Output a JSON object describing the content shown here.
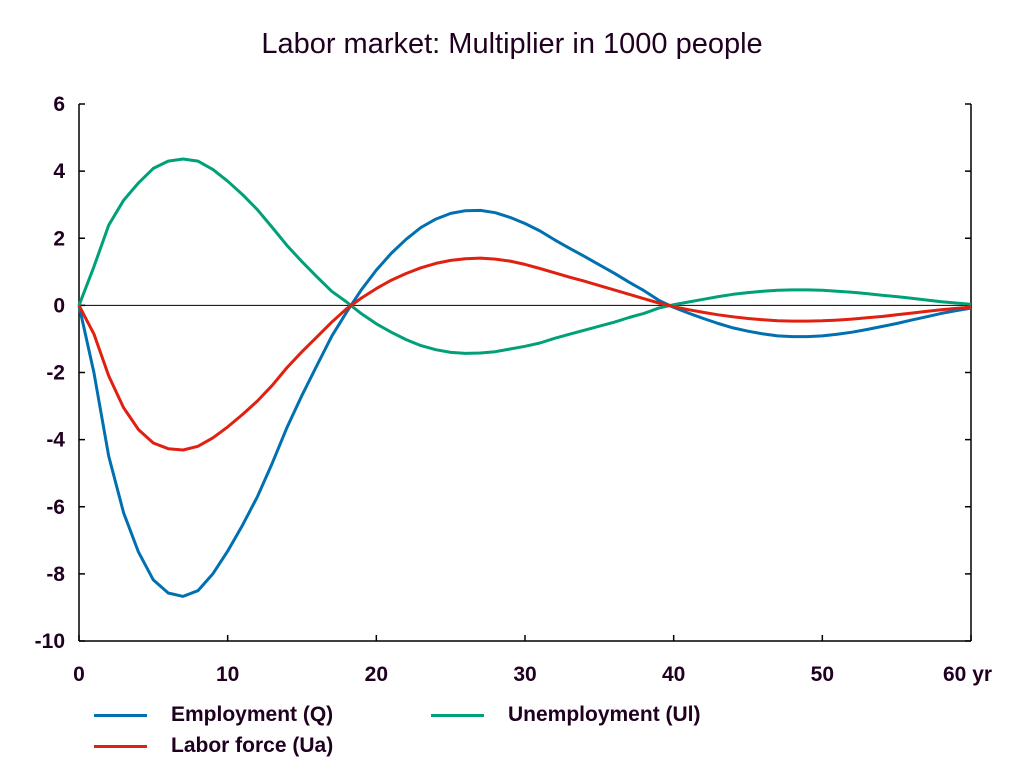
{
  "chart_data": {
    "type": "line",
    "title": "Labor market: Multiplier in 1000 people",
    "xlabel": "yr",
    "ylabel": "",
    "xlim": [
      0,
      60
    ],
    "ylim": [
      -10,
      6
    ],
    "x_ticks": [
      0,
      10,
      20,
      30,
      40,
      50,
      60
    ],
    "x_tick_labels": [
      "0",
      "10",
      "20",
      "30",
      "40",
      "50",
      "60 yr"
    ],
    "y_ticks": [
      6,
      4,
      2,
      0,
      -2,
      -4,
      -6,
      -8,
      -10
    ],
    "y_tick_labels": [
      "6",
      "4",
      "2",
      "0",
      "-2",
      "-4",
      "-6",
      "-8",
      "-10"
    ],
    "grid": false,
    "zero_line": true,
    "legend_position": "bottom",
    "x": [
      0,
      1,
      2,
      3,
      4,
      5,
      6,
      7,
      8,
      9,
      10,
      11,
      12,
      13,
      14,
      15,
      16,
      17,
      18,
      19,
      20,
      21,
      22,
      23,
      24,
      25,
      26,
      27,
      28,
      29,
      30,
      31,
      32,
      33,
      34,
      35,
      36,
      37,
      38,
      39,
      40,
      41,
      42,
      43,
      44,
      45,
      46,
      47,
      48,
      49,
      50,
      51,
      52,
      53,
      54,
      55,
      56,
      57,
      58,
      59,
      60
    ],
    "series": [
      {
        "name": "Employment (Q)",
        "color": "#0070b0",
        "values": [
          0,
          -2.0,
          -4.49,
          -6.18,
          -7.35,
          -8.18,
          -8.57,
          -8.67,
          -8.5,
          -8.0,
          -7.32,
          -6.55,
          -5.7,
          -4.7,
          -3.63,
          -2.68,
          -1.79,
          -0.92,
          -0.2,
          0.47,
          1.05,
          1.55,
          1.97,
          2.32,
          2.57,
          2.74,
          2.82,
          2.83,
          2.76,
          2.62,
          2.44,
          2.22,
          1.95,
          1.7,
          1.46,
          1.21,
          0.96,
          0.69,
          0.44,
          0.15,
          -0.06,
          -0.23,
          -0.39,
          -0.54,
          -0.67,
          -0.77,
          -0.85,
          -0.91,
          -0.93,
          -0.93,
          -0.91,
          -0.86,
          -0.8,
          -0.72,
          -0.63,
          -0.54,
          -0.44,
          -0.34,
          -0.24,
          -0.16,
          -0.08
        ]
      },
      {
        "name": "Unemployment (Ul)",
        "color": "#00a078",
        "values": [
          0,
          1.15,
          2.39,
          3.13,
          3.65,
          4.08,
          4.3,
          4.36,
          4.3,
          4.05,
          3.7,
          3.3,
          2.85,
          2.32,
          1.78,
          1.3,
          0.85,
          0.42,
          0.1,
          -0.25,
          -0.55,
          -0.8,
          -1.02,
          -1.2,
          -1.32,
          -1.4,
          -1.43,
          -1.42,
          -1.38,
          -1.3,
          -1.22,
          -1.12,
          -0.98,
          -0.86,
          -0.74,
          -0.62,
          -0.5,
          -0.36,
          -0.24,
          -0.08,
          0.02,
          0.1,
          0.18,
          0.26,
          0.33,
          0.38,
          0.42,
          0.45,
          0.46,
          0.46,
          0.45,
          0.42,
          0.39,
          0.35,
          0.3,
          0.26,
          0.21,
          0.16,
          0.11,
          0.07,
          0.03
        ]
      },
      {
        "name": "Labor force (Ua)",
        "color": "#e02010",
        "values": [
          0,
          -0.85,
          -2.1,
          -3.05,
          -3.7,
          -4.1,
          -4.27,
          -4.31,
          -4.2,
          -3.95,
          -3.62,
          -3.25,
          -2.85,
          -2.38,
          -1.85,
          -1.38,
          -0.94,
          -0.5,
          -0.1,
          0.22,
          0.5,
          0.75,
          0.95,
          1.12,
          1.25,
          1.34,
          1.39,
          1.41,
          1.38,
          1.32,
          1.22,
          1.1,
          0.97,
          0.84,
          0.72,
          0.59,
          0.46,
          0.33,
          0.2,
          0.07,
          -0.04,
          -0.13,
          -0.21,
          -0.28,
          -0.34,
          -0.39,
          -0.43,
          -0.46,
          -0.47,
          -0.47,
          -0.46,
          -0.44,
          -0.41,
          -0.37,
          -0.33,
          -0.28,
          -0.23,
          -0.18,
          -0.13,
          -0.09,
          -0.05
        ]
      }
    ],
    "legend": [
      {
        "label": "Employment (Q)",
        "color": "#0070b0"
      },
      {
        "label": "Unemployment (Ul)",
        "color": "#00a078"
      },
      {
        "label": "Labor force (Ua)",
        "color": "#e02010"
      }
    ]
  }
}
